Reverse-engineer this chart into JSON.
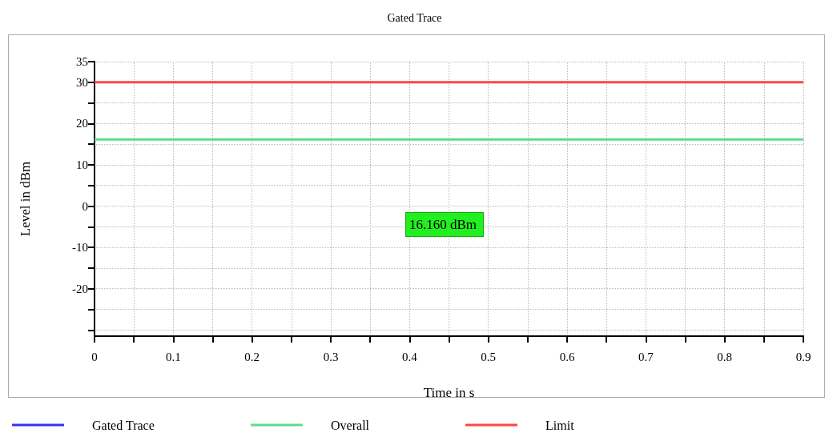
{
  "chart_data": {
    "type": "line",
    "title": "Gated Trace",
    "xlabel": "Time in s",
    "ylabel": "Level in dBm",
    "x": [
      0,
      0.9
    ],
    "series": [
      {
        "name": "Gated Trace",
        "color": "#3333ff",
        "values": [
          null,
          null
        ]
      },
      {
        "name": "Overall",
        "color": "#5ddc8c",
        "values": [
          16.16,
          16.16
        ]
      },
      {
        "name": "Limit",
        "color": "#ff4444",
        "values": [
          30,
          30
        ]
      }
    ],
    "xlim": [
      0,
      0.9
    ],
    "xticks": [
      0,
      {
        "value": 0.05,
        "label": null
      },
      0.1,
      {
        "value": 0.15,
        "label": null
      },
      0.2,
      {
        "value": 0.25,
        "label": null
      },
      0.3,
      {
        "value": 0.35,
        "label": null
      },
      0.4,
      {
        "value": 0.45,
        "label": null
      },
      0.5,
      {
        "value": 0.55,
        "label": null
      },
      0.6,
      {
        "value": 0.65,
        "label": null
      },
      0.7,
      {
        "value": 0.75,
        "label": null
      },
      0.8,
      {
        "value": 0.85,
        "label": null
      },
      0.9
    ],
    "ylim": [
      -31.5,
      35
    ],
    "yticks": [
      {
        "value": -30,
        "label": null
      },
      {
        "value": -25,
        "label": null
      },
      -20,
      {
        "value": -15,
        "label": null
      },
      -10,
      {
        "value": -5,
        "label": null
      },
      0,
      {
        "value": 5,
        "label": null
      },
      10,
      {
        "value": 15,
        "label": null
      },
      20,
      {
        "value": 25,
        "label": null
      },
      30,
      35
    ],
    "annotations": [
      "16.160 dBm"
    ],
    "grid": true,
    "legend": "bottom",
    "marker": "none",
    "line_style": "solid"
  }
}
